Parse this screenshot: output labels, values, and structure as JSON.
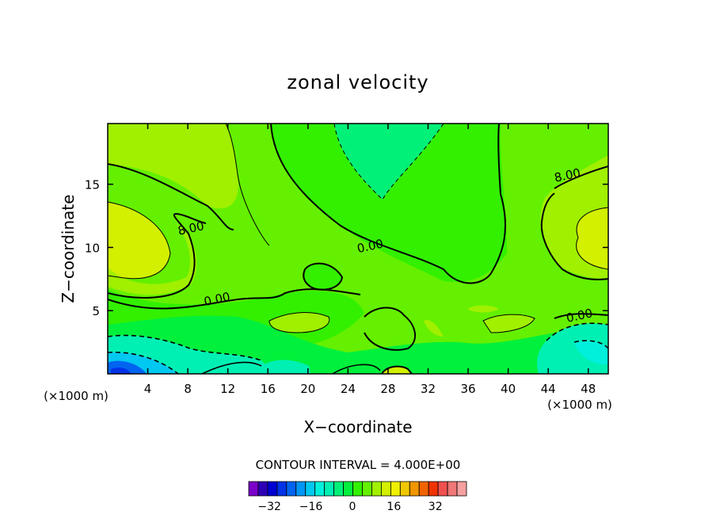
{
  "chart_data": {
    "type": "heatmap",
    "title": "zonal velocity",
    "xlabel": "X−coordinate",
    "ylabel": "Z−coordinate",
    "x_unit_left": "(×1000 m)",
    "x_unit_right": "(×1000 m)",
    "xlim": [
      0,
      50
    ],
    "ylim": [
      0,
      19.8
    ],
    "x_ticks": [
      4,
      8,
      12,
      16,
      20,
      24,
      28,
      32,
      36,
      40,
      44,
      48
    ],
    "x_tick_labels": [
      "4",
      "8",
      "12",
      "16",
      "20",
      "24",
      "28",
      "32",
      "36",
      "40",
      "44",
      "48"
    ],
    "y_ticks": [
      5,
      10,
      15
    ],
    "y_tick_labels": [
      "5",
      "10",
      "15"
    ],
    "contour_interval_text": "CONTOUR INTERVAL = 4.000E+00",
    "contour_labels": [
      {
        "text": "8.00",
        "x": 8.4,
        "y": 11.2
      },
      {
        "text": "0.00",
        "x": 26.3,
        "y": 9.8
      },
      {
        "text": "0.00",
        "x": 11.0,
        "y": 5.6
      },
      {
        "text": "8.00",
        "x": 46.0,
        "y": 15.4
      },
      {
        "text": "0.00",
        "x": 47.2,
        "y": 4.3
      }
    ],
    "colorbar": {
      "min": -40,
      "max": 44,
      "step": 4,
      "colors": [
        "#7a00c8",
        "#2d00b4",
        "#0000d2",
        "#0032e6",
        "#0064f0",
        "#0096f5",
        "#00c8f0",
        "#00f0dc",
        "#00f0b4",
        "#00f078",
        "#00f03c",
        "#32f000",
        "#64f000",
        "#a0f000",
        "#d2f000",
        "#f0f000",
        "#f0c800",
        "#f09600",
        "#f06400",
        "#f03200",
        "#f05050",
        "#f07878",
        "#f5a0a0"
      ],
      "tick_values": [
        -32,
        -16,
        0,
        16,
        32
      ],
      "tick_labels": [
        "−32",
        "−16",
        "0",
        "16",
        "32"
      ]
    },
    "grid": false,
    "legend": "bottom"
  }
}
